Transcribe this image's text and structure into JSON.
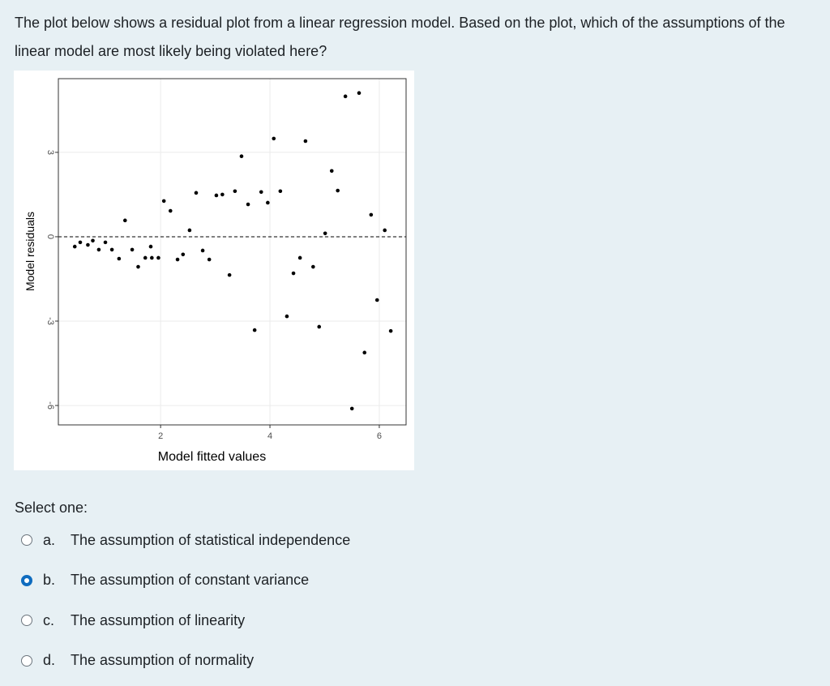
{
  "question": "The plot below shows a residual plot from a linear regression model. Based on the plot, which of the assumptions of the linear model are most likely being violated here?",
  "chart_data": {
    "type": "scatter",
    "xlabel": "Model fitted values",
    "ylabel": "Model residuals",
    "x": [
      0.43,
      0.53,
      0.67,
      0.76,
      0.87,
      0.99,
      1.11,
      1.24,
      1.35,
      1.48,
      1.59,
      1.72,
      1.82,
      1.84,
      1.96,
      2.06,
      2.18,
      2.31,
      2.41,
      2.53,
      2.65,
      2.77,
      2.89,
      3.02,
      3.13,
      3.26,
      3.36,
      3.48,
      3.6,
      3.72,
      3.84,
      3.96,
      4.07,
      4.19,
      4.31,
      4.43,
      4.55,
      4.65,
      4.79,
      4.9,
      5.01,
      5.13,
      5.24,
      5.38,
      5.5,
      5.63,
      5.73,
      5.85,
      5.96,
      6.1,
      6.21
    ],
    "values": [
      -0.35,
      -0.2,
      -0.29,
      -0.14,
      -0.46,
      -0.2,
      -0.46,
      -0.78,
      0.58,
      -0.46,
      -1.07,
      -0.75,
      -0.35,
      -0.75,
      -0.75,
      1.27,
      0.92,
      -0.81,
      -0.63,
      0.23,
      1.56,
      -0.49,
      -0.81,
      1.47,
      1.5,
      -1.36,
      1.62,
      2.86,
      1.15,
      -3.32,
      1.59,
      1.21,
      3.49,
      1.62,
      -2.83,
      -1.3,
      -0.75,
      3.4,
      -1.07,
      -3.2,
      0.12,
      2.34,
      1.64,
      4.99,
      -6.11,
      5.11,
      -4.12,
      0.78,
      -2.25,
      0.23,
      -3.35
    ],
    "color": "#000000",
    "xlim": [
      0.13,
      6.49
    ],
    "ylim": [
      -6.69,
      5.62
    ],
    "xticks": [
      2,
      4,
      6
    ],
    "yticks": [
      -6,
      -3,
      0,
      3
    ],
    "hline": 0,
    "grid": true
  },
  "prompt": "Select one:",
  "options": [
    {
      "letter": "a.",
      "text": "The assumption of statistical independence",
      "selected": false
    },
    {
      "letter": "b.",
      "text": "The assumption of constant variance",
      "selected": true
    },
    {
      "letter": "c.",
      "text": "The assumption of linearity",
      "selected": false
    },
    {
      "letter": "d.",
      "text": "The assumption of normality",
      "selected": false
    }
  ]
}
